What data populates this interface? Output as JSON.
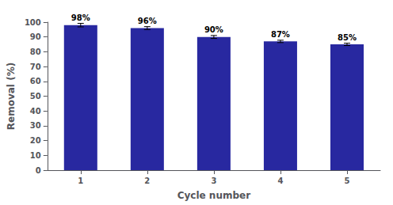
{
  "chart_data": {
    "type": "bar",
    "categories": [
      "1",
      "2",
      "3",
      "4",
      "5"
    ],
    "values": [
      98,
      96,
      90,
      87,
      85
    ],
    "errors": [
      1.2,
      1.0,
      1.0,
      0.8,
      0.8
    ],
    "value_labels": [
      "98%",
      "96%",
      "90%",
      "87%",
      "85%"
    ],
    "data_labels": true,
    "color": "#2828A0",
    "xlabel": "Cycle number",
    "ylabel": "Removal (%)",
    "ylim": [
      0,
      100
    ],
    "yticks": [
      0,
      10,
      20,
      30,
      40,
      50,
      60,
      70,
      80,
      90,
      100
    ],
    "grid": false
  }
}
